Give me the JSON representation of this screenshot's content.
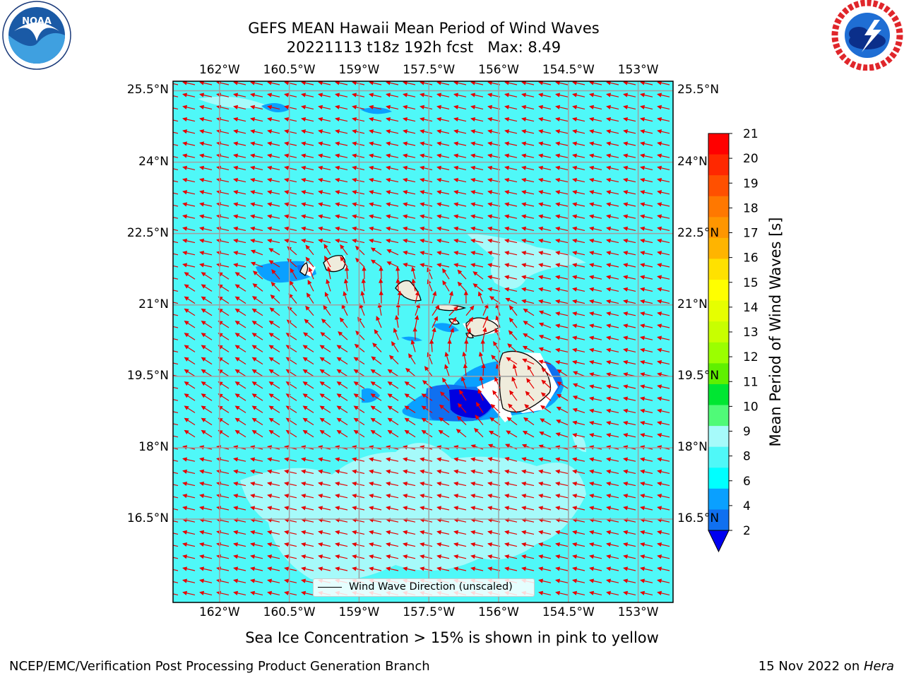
{
  "header": {
    "title_line1": "GEFS MEAN Hawaii Mean Period of Wind Waves",
    "title_line2": "20221113 t18z 192h fcst   Max: 8.49"
  },
  "logos": {
    "left": {
      "name": "NOAA",
      "ring_text": "NATIONAL OCEANIC AND ATMOSPHERIC ADMINISTRATION · U.S. DEPARTMENT OF COMMERCE",
      "color": "#1a5aa6"
    },
    "right": {
      "name": "NATIONAL WEATHER SERVICE",
      "color": "#e0262b"
    }
  },
  "map": {
    "lon_ticks": [
      "162°W",
      "160.5°W",
      "159°W",
      "157.5°W",
      "156°W",
      "154.5°W",
      "153°W"
    ],
    "lat_ticks": [
      "25.5°N",
      "24°N",
      "22.5°N",
      "21°N",
      "19.5°N",
      "18°N",
      "16.5°N"
    ],
    "lon_values": [
      -162,
      -160.5,
      -159,
      -157.5,
      -156,
      -154.5,
      -153
    ],
    "lat_values": [
      25.5,
      24,
      22.5,
      21,
      19.5,
      18,
      16.5
    ],
    "extent": {
      "lon_min": -163,
      "lon_max": -152.25,
      "lat_min": 14.75,
      "lat_max": 25.7
    },
    "background_color": "#4ff8f8",
    "arrow_color": "#e60000",
    "legend_label": "Wind Wave Direction (unscaled)",
    "islands": [
      "Niihau",
      "Kauai",
      "Oahu",
      "Molokai",
      "Lanai",
      "Maui",
      "Kahoolawe",
      "Hawaii"
    ]
  },
  "colorbar": {
    "label": "Mean Period of Wind Waves [s]",
    "ticks": [
      "21",
      "20",
      "19",
      "18",
      "17",
      "16",
      "15",
      "14",
      "13",
      "12",
      "11",
      "10",
      "9",
      "8",
      "6",
      "4",
      "2"
    ],
    "colors": [
      "#ff0000",
      "#ff2800",
      "#ff5000",
      "#ff7800",
      "#ff9600",
      "#ffb400",
      "#ffe100",
      "#ffff00",
      "#e6ff00",
      "#c8ff00",
      "#9bff00",
      "#5ff000",
      "#00e632",
      "#50fa78",
      "#a6fafa",
      "#4ff8f8",
      "#00ffff",
      "#0aa0ff",
      "#1070f0"
    ],
    "extend_color": "#0000f0"
  },
  "footer": {
    "note": "Sea Ice Concentration > 15% is shown in pink to yellow",
    "org": "NCEP/EMC/Verification Post Processing Product Generation Branch",
    "date": "15 Nov 2022 on ",
    "machine": "Hera"
  }
}
